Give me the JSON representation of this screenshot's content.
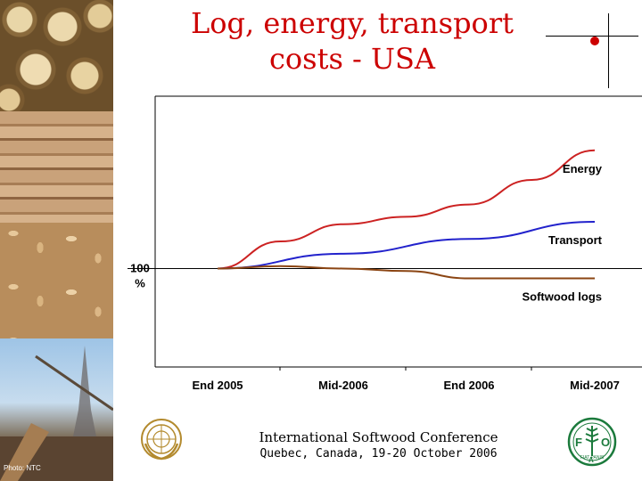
{
  "slide": {
    "title_line1": "Log, energy, transport",
    "title_line2": "costs - USA",
    "photo_credit": "Photo: NTC",
    "footer_title": "International Softwood Conference",
    "footer_subtitle": "Quebec, Canada, 19-20 October 2006",
    "logos": [
      "un-emblem",
      "fao-logo"
    ],
    "fao_letters": [
      "F",
      "A",
      "O"
    ],
    "fao_motto": "FIAT PANIS",
    "accent_color": "#cc0000"
  },
  "chart_data": {
    "type": "line",
    "title": "",
    "xlabel": "",
    "ylabel": "",
    "baseline_label_value": "100",
    "baseline_label_unit": "%",
    "categories": [
      "End 2005",
      "Mid-2006",
      "End 2006",
      "Mid-2007"
    ],
    "x": [
      0,
      1,
      2,
      3
    ],
    "ylim": [
      60,
      170
    ],
    "baseline": 100,
    "grid": false,
    "legend": "direct labels at line ends",
    "series": [
      {
        "name": "Energy",
        "color": "#cc2222",
        "points": [
          [
            0.0,
            100
          ],
          [
            0.5,
            111
          ],
          [
            1.0,
            118
          ],
          [
            1.5,
            121
          ],
          [
            2.0,
            126
          ],
          [
            2.5,
            136
          ],
          [
            3.0,
            148
          ]
        ]
      },
      {
        "name": "Transport",
        "color": "#2222cc",
        "points": [
          [
            0.0,
            100
          ],
          [
            1.0,
            106
          ],
          [
            2.0,
            112
          ],
          [
            3.0,
            119
          ]
        ]
      },
      {
        "name": "Softwood logs",
        "color": "#8b4513",
        "points": [
          [
            0.0,
            100
          ],
          [
            0.5,
            101
          ],
          [
            1.0,
            100
          ],
          [
            1.5,
            99
          ],
          [
            2.0,
            96
          ],
          [
            2.5,
            96
          ],
          [
            3.0,
            96
          ]
        ]
      }
    ]
  }
}
